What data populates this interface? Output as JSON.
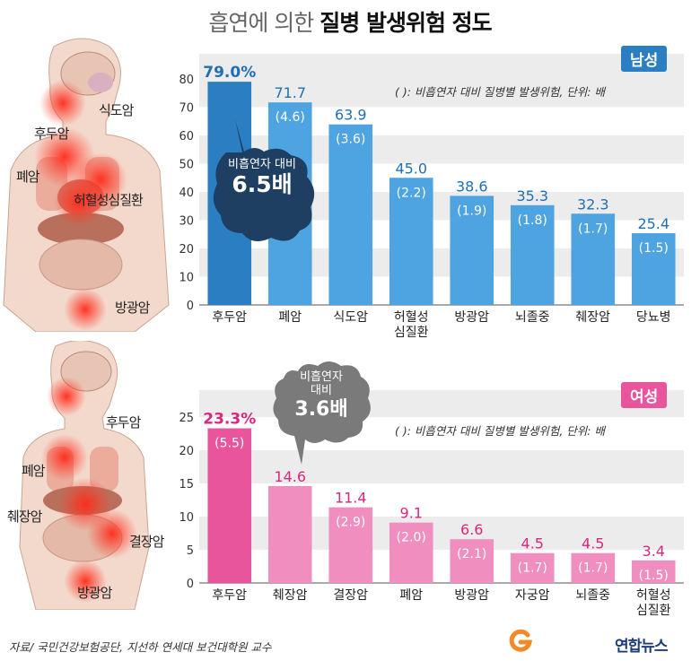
{
  "title": {
    "part1": "흡연에 의한 ",
    "part2": "질병 발생위험 정도"
  },
  "colors": {
    "male_highlight": "#2b7ec2",
    "male_bar": "#4ea4e0",
    "male_label": "#1f6fb5",
    "female_highlight": "#e8559c",
    "female_bar": "#f08fbf",
    "female_label": "#d9267e",
    "grid_band": "#ececec"
  },
  "male": {
    "gender_label": "남성",
    "note": "(   ): 비흡연자 대비 질병별 발생위험, 단위: 배",
    "bubble_line1": "비흡연자 대비",
    "bubble_line2": "6.5배",
    "illustration_labels": [
      "식도암",
      "후두암",
      "폐암",
      "허혈성심질환",
      "방광암"
    ]
  },
  "female": {
    "gender_label": "여성",
    "note": "(   ): 비흡연자 대비 질병별 발생위험, 단위: 배",
    "bubble_line1": "비흡연자",
    "bubble_line2": "대비",
    "bubble_line3": "3.6배",
    "illustration_labels": [
      "후두암",
      "폐암",
      "췌장암",
      "결장암",
      "방광암"
    ]
  },
  "chart_data": [
    {
      "type": "bar",
      "title": "남성",
      "categories": [
        "후두암",
        "폐암",
        "식도암",
        "허혈성\n심질환",
        "방광암",
        "뇌졸중",
        "췌장암",
        "당뇨병"
      ],
      "values": [
        79.0,
        71.7,
        63.9,
        45.0,
        38.6,
        35.3,
        32.3,
        25.4
      ],
      "value_labels": [
        "79.0%",
        "71.7",
        "63.9",
        "45.0",
        "38.6",
        "35.3",
        "32.3",
        "25.4"
      ],
      "ratio_labels": [
        "",
        "(4.6)",
        "(3.6)",
        "(2.2)",
        "(1.9)",
        "(1.8)",
        "(1.7)",
        "(1.5)"
      ],
      "ylim": [
        0,
        80
      ],
      "yticks": [
        0,
        10,
        20,
        30,
        40,
        50,
        60,
        70,
        80
      ],
      "grid": true
    },
    {
      "type": "bar",
      "title": "여성",
      "categories": [
        "후두암",
        "췌장암",
        "결장암",
        "폐암",
        "방광암",
        "자궁암",
        "뇌졸중",
        "허혈성\n심질환"
      ],
      "values": [
        23.3,
        14.6,
        11.4,
        9.1,
        6.6,
        4.5,
        4.5,
        3.4
      ],
      "value_labels": [
        "23.3%",
        "14.6",
        "11.4",
        "9.1",
        "6.6",
        "4.5",
        "4.5",
        "3.4"
      ],
      "ratio_labels": [
        "(5.5)",
        "",
        "(2.9)",
        "(2.0)",
        "(2.1)",
        "(1.7)",
        "(1.7)",
        "(1.5)"
      ],
      "ylim": [
        0,
        25
      ],
      "yticks": [
        0,
        5,
        10,
        15,
        20,
        25
      ],
      "grid": true
    }
  ],
  "footer": {
    "source": "자료/ 국민건강보험공단, 지선하 연세대 보건대학원 교수",
    "logo": "연합뉴스"
  }
}
